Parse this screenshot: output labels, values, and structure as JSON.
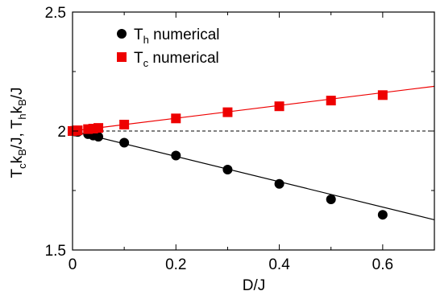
{
  "chart_data": {
    "type": "scatter",
    "title": "",
    "xlabel": "D/J",
    "ylabel_parts": [
      "T",
      "c",
      "k",
      "B",
      "/J, T",
      "h",
      "k",
      "B",
      "/J"
    ],
    "xlim": [
      0,
      0.7
    ],
    "ylim": [
      1.5,
      2.5
    ],
    "x_ticks": [
      "0",
      "0.2",
      "0.4",
      "0.6"
    ],
    "x_tick_values": [
      0,
      0.2,
      0.4,
      0.6
    ],
    "y_ticks": [
      "1.5",
      "2",
      "2.5"
    ],
    "y_tick_values": [
      1.5,
      2,
      2.5
    ],
    "legend_position": "top-left",
    "series": [
      {
        "name": "T_h numerical",
        "legend_main": "T",
        "legend_sub": "h",
        "legend_rest": " numerical",
        "marker": "circle",
        "color": "#000000",
        "points": [
          {
            "x": 0.0,
            "y": 2.0
          },
          {
            "x": 0.005,
            "y": 1.998
          },
          {
            "x": 0.01,
            "y": 1.996
          },
          {
            "x": 0.03,
            "y": 1.987
          },
          {
            "x": 0.04,
            "y": 1.981
          },
          {
            "x": 0.05,
            "y": 1.976
          },
          {
            "x": 0.1,
            "y": 1.951
          },
          {
            "x": 0.2,
            "y": 1.897
          },
          {
            "x": 0.3,
            "y": 1.838
          },
          {
            "x": 0.4,
            "y": 1.778
          },
          {
            "x": 0.5,
            "y": 1.713
          },
          {
            "x": 0.6,
            "y": 1.648
          }
        ]
      },
      {
        "name": "T_c numerical",
        "legend_main": "T",
        "legend_sub": "c",
        "legend_rest": " numerical",
        "marker": "square",
        "color": "#ee0000",
        "points": [
          {
            "x": 0.0,
            "y": 2.0
          },
          {
            "x": 0.005,
            "y": 2.001
          },
          {
            "x": 0.01,
            "y": 2.003
          },
          {
            "x": 0.03,
            "y": 2.008
          },
          {
            "x": 0.04,
            "y": 2.01
          },
          {
            "x": 0.05,
            "y": 2.013
          },
          {
            "x": 0.1,
            "y": 2.027
          },
          {
            "x": 0.2,
            "y": 2.053
          },
          {
            "x": 0.3,
            "y": 2.079
          },
          {
            "x": 0.4,
            "y": 2.104
          },
          {
            "x": 0.5,
            "y": 2.128
          },
          {
            "x": 0.6,
            "y": 2.151
          }
        ]
      }
    ],
    "fit_lines": [
      {
        "color": "#000000",
        "x": [
          0,
          0.7
        ],
        "y": [
          2.0,
          1.627
        ]
      },
      {
        "color": "#ee0000",
        "x": [
          0,
          0.7
        ],
        "y": [
          2.0,
          2.188
        ]
      }
    ],
    "reference_line": {
      "y": 2.0,
      "style": "dashed",
      "color": "#000000"
    }
  }
}
